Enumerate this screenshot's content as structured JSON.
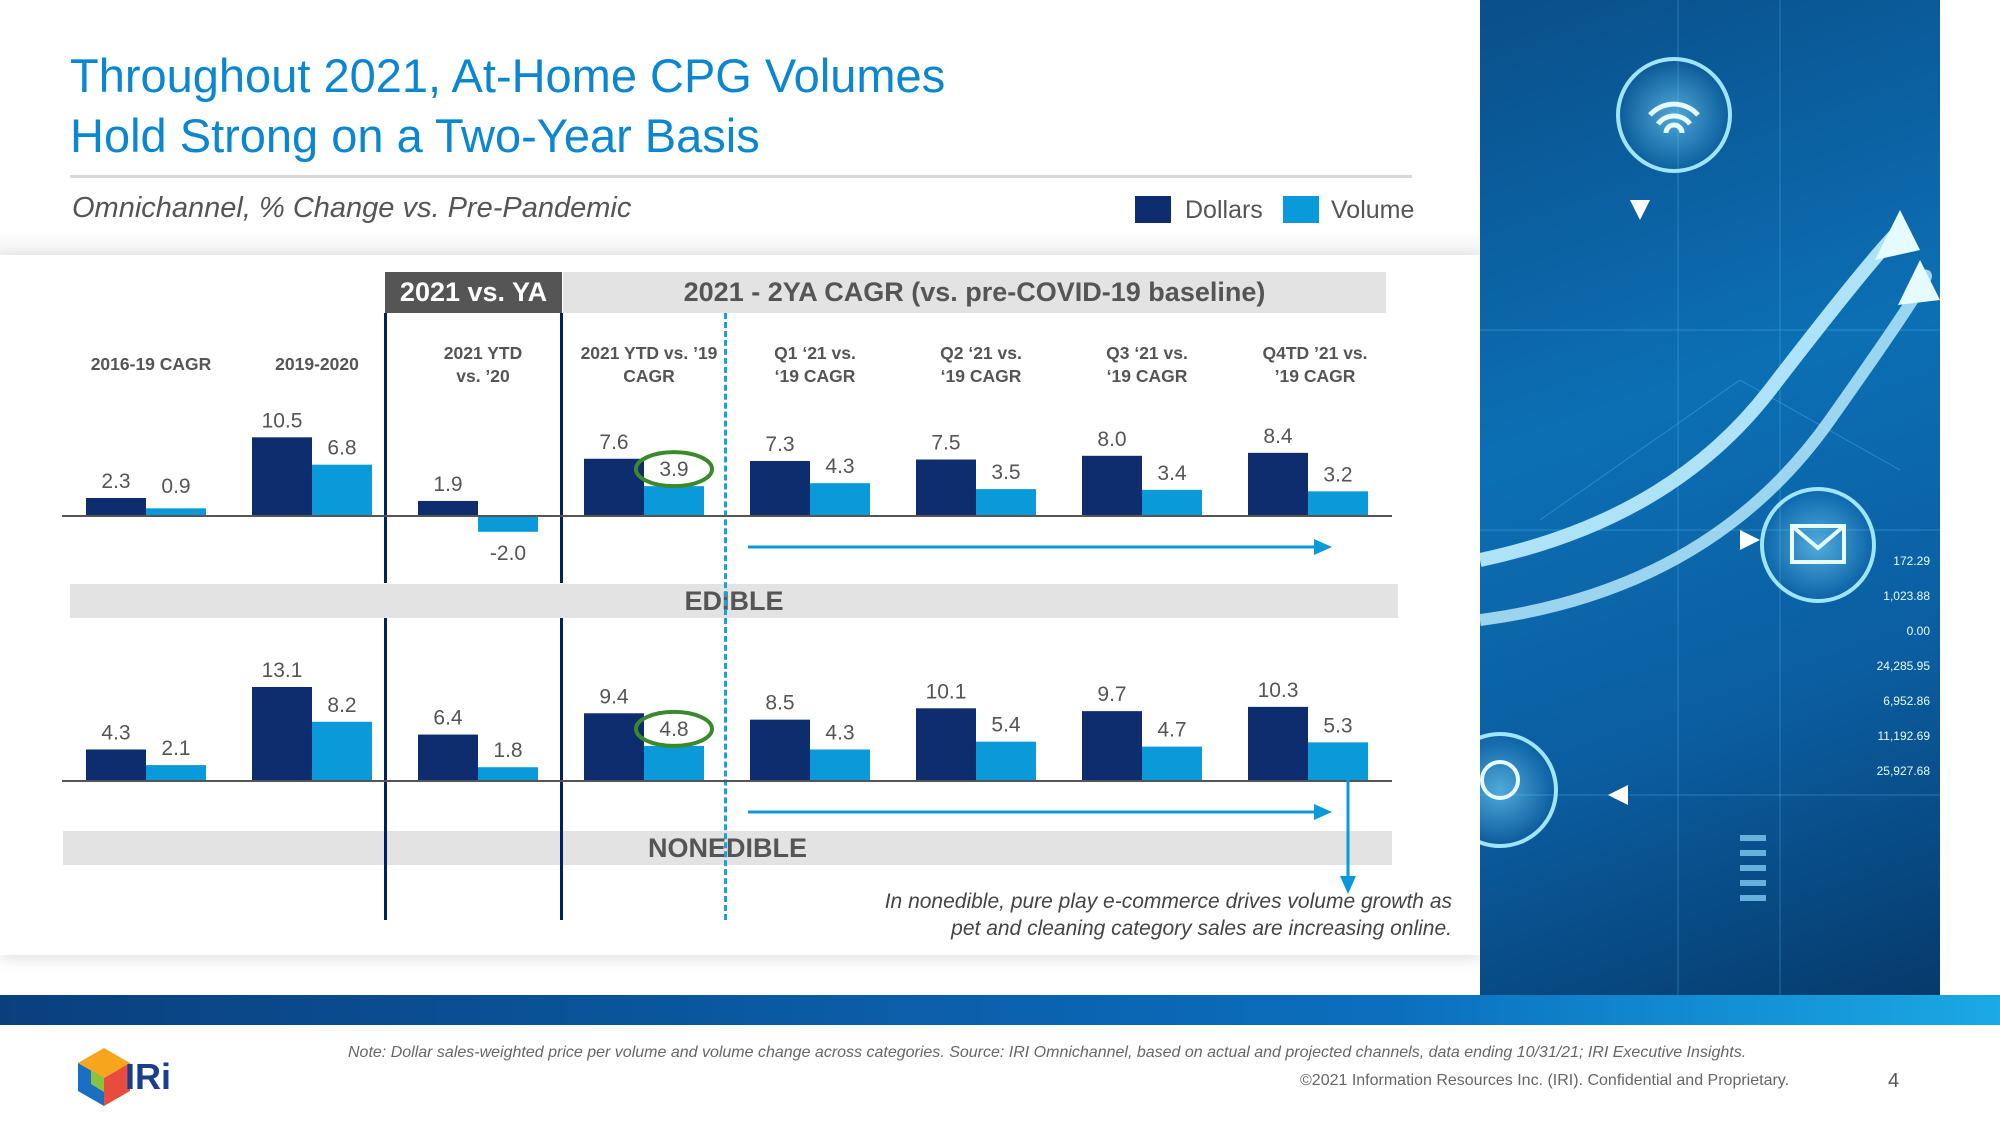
{
  "title_line1": "Throughout 2021, At-Home CPG Volumes",
  "title_line2": "Hold Strong on a Two-Year Basis",
  "subtitle": "Omnichannel, % Change vs. Pre-Pandemic",
  "legend": {
    "dollars": "Dollars",
    "volume": "Volume"
  },
  "colors": {
    "dollars": "#0d2d6e",
    "volume": "#0a9ad9",
    "title": "#0b86d1",
    "circle": "#3a8a2c"
  },
  "headers": {
    "ya": "2021 vs. YA",
    "cagr": "2021 - 2YA  CAGR (vs. pre-COVID-19 baseline)"
  },
  "columns": [
    {
      "line1": "2016-19 CAGR",
      "line2": ""
    },
    {
      "line1": "2019-2020",
      "line2": ""
    },
    {
      "line1": "2021 YTD",
      "line2": "vs. ’20"
    },
    {
      "line1": "2021 YTD vs. ’19",
      "line2": "CAGR"
    },
    {
      "line1": "Q1 ‘21 vs.",
      "line2": "‘19 CAGR"
    },
    {
      "line1": "Q2 ‘21 vs.",
      "line2": "‘19 CAGR"
    },
    {
      "line1": "Q3 ‘21 vs.",
      "line2": "‘19 CAGR"
    },
    {
      "line1": "Q4TD ’21 vs.",
      "line2": "’19 CAGR"
    }
  ],
  "bands": {
    "edible": "EDIBLE",
    "nonedible": "NONEDIBLE"
  },
  "note_line1": "In nonedible, pure play e-commerce drives volume growth as",
  "note_line2": "pet and cleaning category sales are increasing online.",
  "footnote": "Note: Dollar sales-weighted price per volume and volume change across categories. Source: IRI Omnichannel, based on actual and projected channels, data ending 10/31/21; IRI Executive Insights.",
  "copyright": "©2021 Information Resources Inc. (IRI). Confidential and Proprietary.",
  "page_number": "4",
  "logo": "IRi",
  "image_labels": [
    "172.29",
    "1,023.88",
    "0.00",
    "24,285.95",
    "6,952.86",
    "11,192.69",
    "25,927.68"
  ],
  "chart_data": [
    {
      "type": "bar",
      "title": "EDIBLE",
      "categories": [
        "2016-19 CAGR",
        "2019-2020",
        "2021 YTD vs. ’20",
        "2021 YTD vs. ’19 CAGR",
        "Q1 ‘21 vs. ‘19 CAGR",
        "Q2 ‘21 vs. ‘19 CAGR",
        "Q3 ‘21 vs. ‘19 CAGR",
        "Q4TD ’21 vs. ’19 CAGR"
      ],
      "series": [
        {
          "name": "Dollars",
          "values": [
            2.3,
            10.5,
            1.9,
            7.6,
            7.3,
            7.5,
            8.0,
            8.4
          ]
        },
        {
          "name": "Volume",
          "values": [
            0.9,
            6.8,
            -2.0,
            3.9,
            4.3,
            3.5,
            3.4,
            3.2
          ]
        }
      ],
      "labels": {
        "Dollars": [
          "2.3",
          "10.5",
          "1.9",
          "7.6",
          "7.3",
          "7.5",
          "8.0",
          "8.4"
        ],
        "Volume": [
          "0.9",
          "6.8",
          "-2.0",
          "3.9",
          "4.3",
          "3.5",
          "3.4",
          "3.2"
        ]
      },
      "highlighted": {
        "series": "Volume",
        "category_index": 3
      }
    },
    {
      "type": "bar",
      "title": "NONEDIBLE",
      "categories": [
        "2016-19 CAGR",
        "2019-2020",
        "2021 YTD vs. ’20",
        "2021 YTD vs. ’19 CAGR",
        "Q1 ‘21 vs. ‘19 CAGR",
        "Q2 ‘21 vs. ‘19 CAGR",
        "Q3 ‘21 vs. ‘19 CAGR",
        "Q4TD ’21 vs. ’19 CAGR"
      ],
      "series": [
        {
          "name": "Dollars",
          "values": [
            4.3,
            13.1,
            6.4,
            9.4,
            8.5,
            10.1,
            9.7,
            10.3
          ]
        },
        {
          "name": "Volume",
          "values": [
            2.1,
            8.2,
            1.8,
            4.8,
            4.3,
            5.4,
            4.7,
            5.3
          ]
        }
      ],
      "labels": {
        "Dollars": [
          "4.3",
          "13.1",
          "6.4",
          "9.4",
          "8.5",
          "10.1",
          "9.7",
          "10.3"
        ],
        "Volume": [
          "2.1",
          "8.2",
          "1.8",
          "4.8",
          "4.3",
          "5.4",
          "4.7",
          "5.3"
        ]
      },
      "highlighted": {
        "series": "Volume",
        "category_index": 3
      }
    }
  ]
}
